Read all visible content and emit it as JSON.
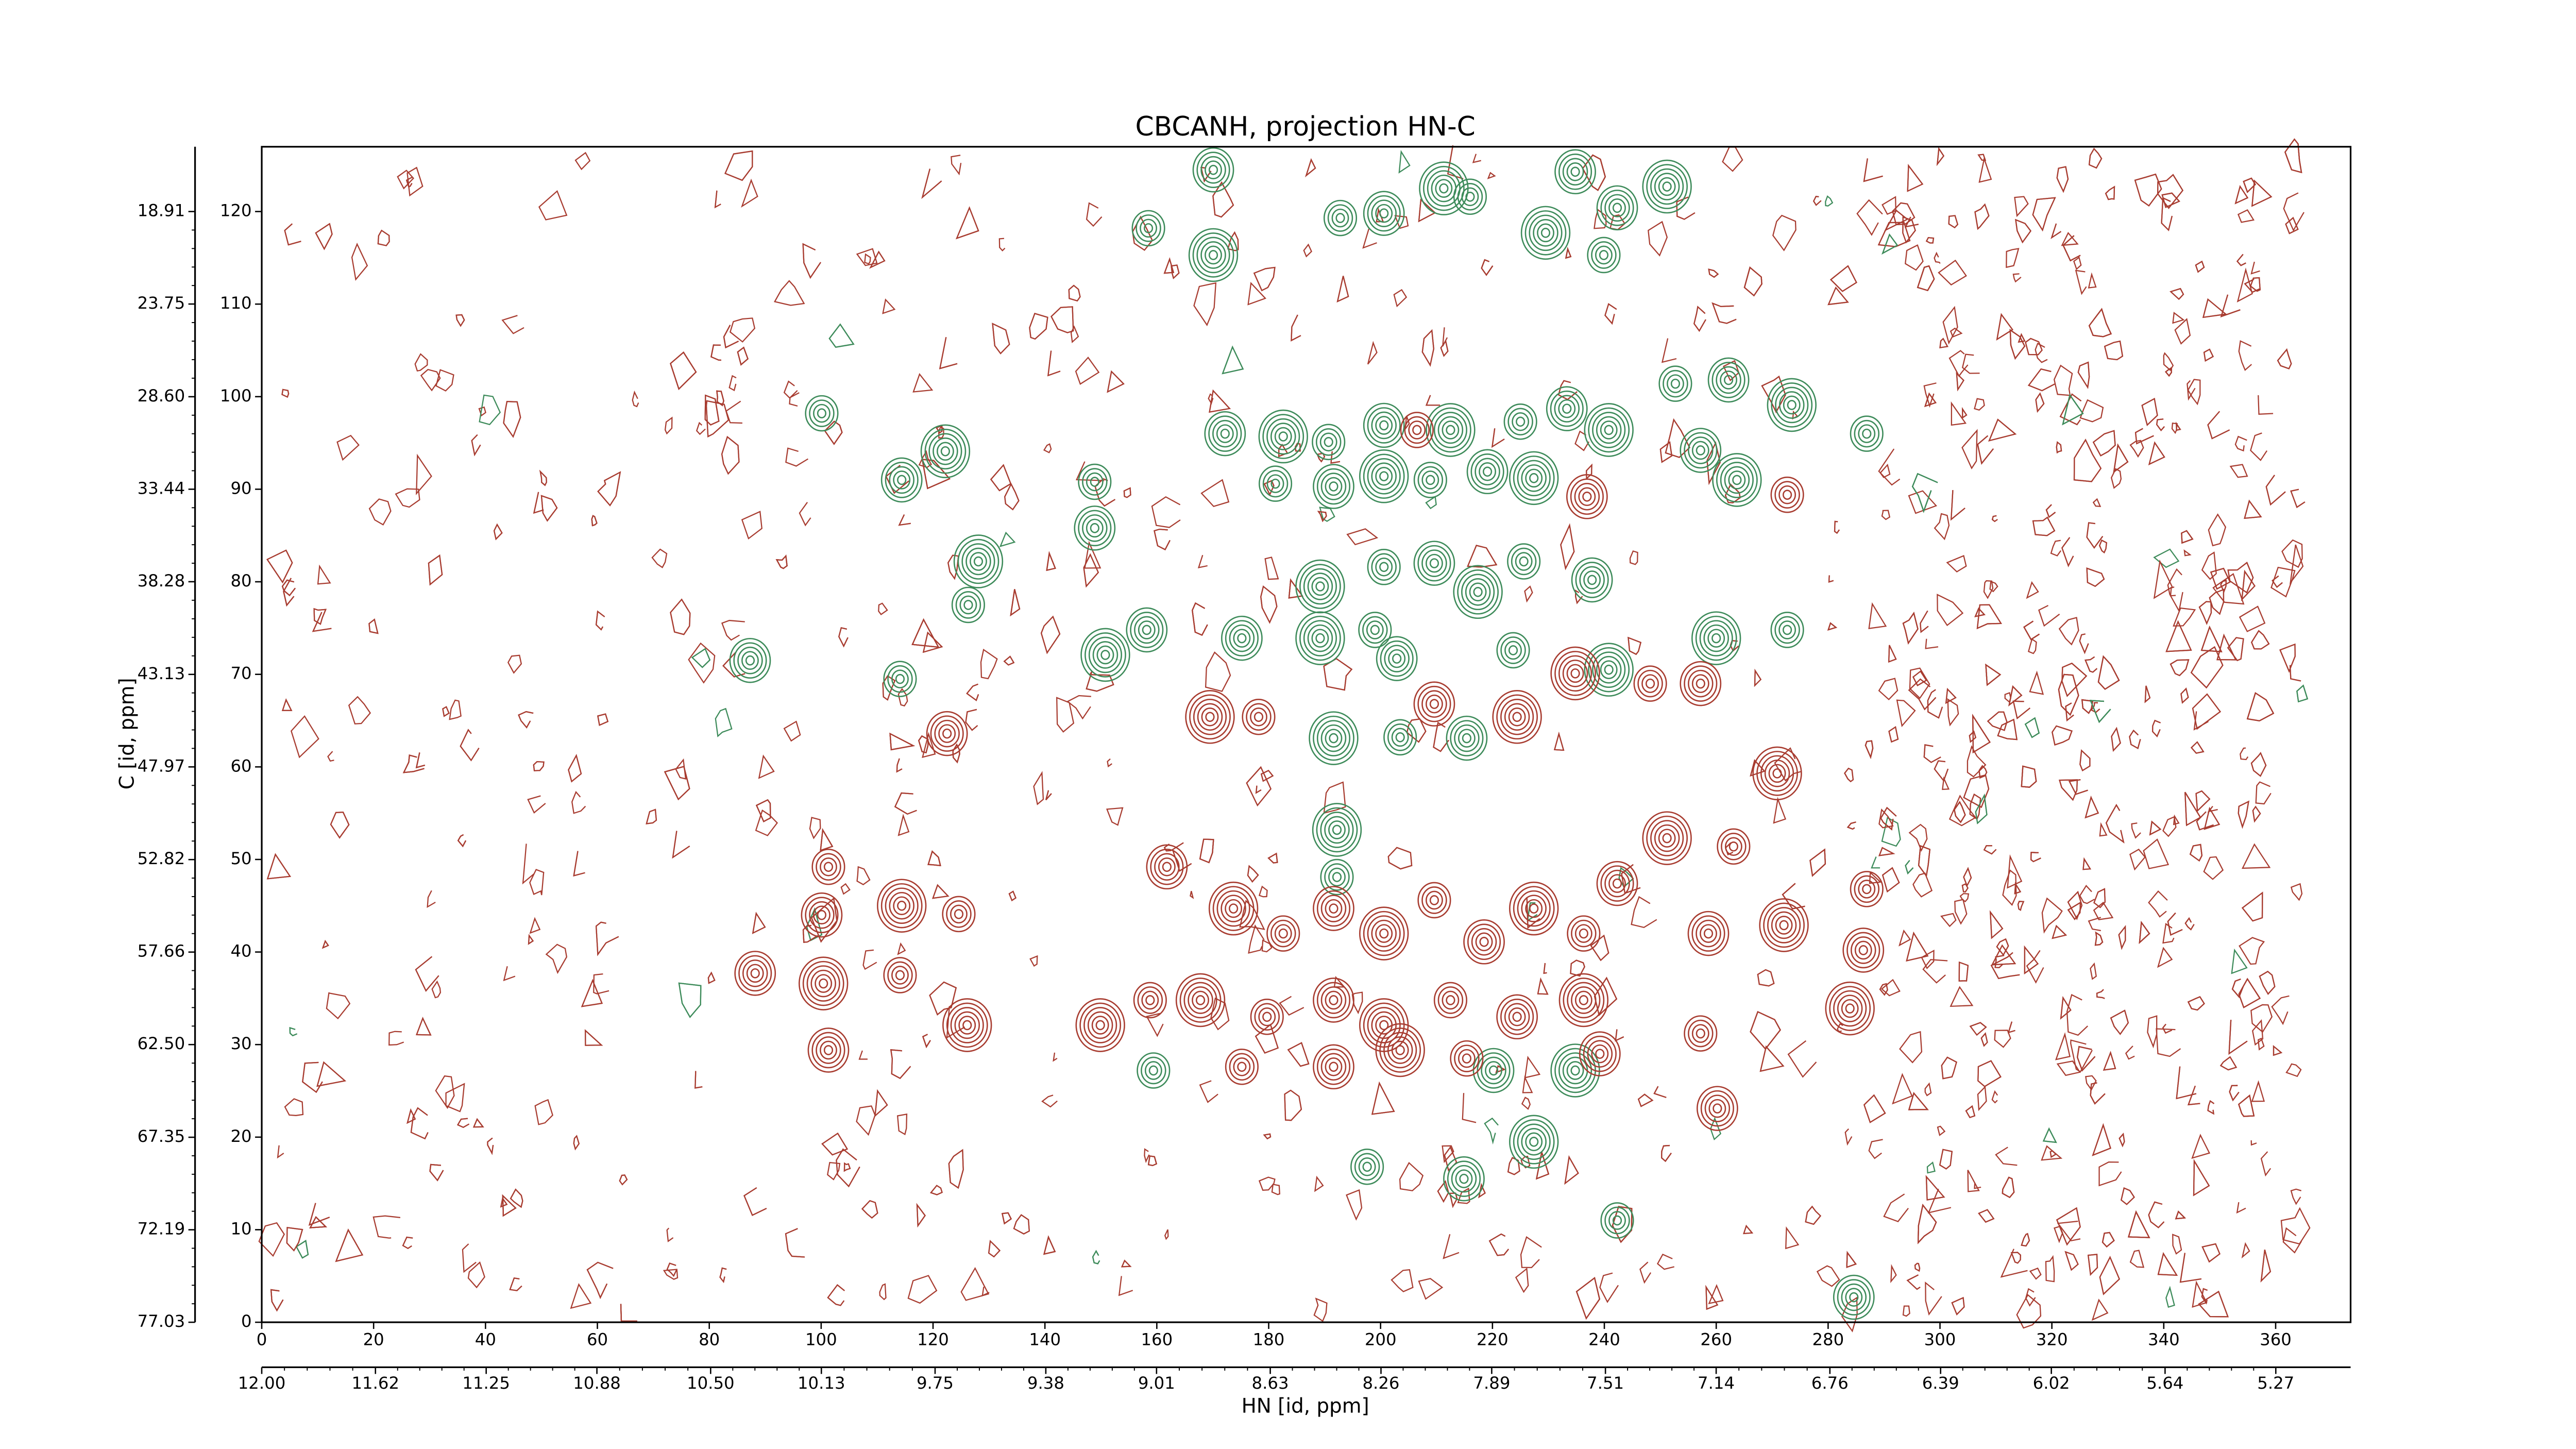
{
  "chart_data": {
    "type": "contour",
    "title": "CBCANH, projection HN-C",
    "xlabel": "HN [id, ppm]",
    "ylabel": "C [id, ppm]",
    "xlim": [
      0,
      373.4
    ],
    "xticks": [
      0,
      20,
      40,
      60,
      80,
      100,
      120,
      140,
      160,
      180,
      200,
      220,
      240,
      260,
      280,
      300,
      320,
      340,
      360
    ],
    "x2lim": [
      12.0,
      5.02
    ],
    "x2ticks": [
      {
        "value": 12.0,
        "label": "12.00"
      },
      11.62,
      11.25,
      10.88,
      {
        "value": 10.5,
        "label": "10.50"
      },
      10.13,
      9.75,
      9.38,
      9.01,
      8.63,
      8.26,
      7.89,
      7.51,
      7.14,
      6.76,
      6.39,
      6.02,
      5.64,
      5.27
    ],
    "ylim": [
      0,
      127
    ],
    "yticks": [
      0,
      10,
      20,
      30,
      40,
      50,
      60,
      70,
      80,
      90,
      100,
      110,
      120
    ],
    "y2lim": [
      77.03,
      15.52
    ],
    "y2ticks": [
      77.03,
      72.19,
      67.35,
      {
        "value": 62.5,
        "label": "62.50"
      },
      57.66,
      52.82,
      47.97,
      43.13,
      38.28,
      33.44,
      {
        "value": 28.6,
        "label": "28.60"
      },
      23.75,
      18.91
    ],
    "series": [
      {
        "color": "#3d8b5a",
        "x": [
          158.5,
          170.1,
          170.1,
          192.8,
          200.6,
          211.3,
          216.0,
          234.8,
          229.5,
          239.9,
          242.3,
          251.2,
          100.1,
          114.4,
          122.2,
          148.9,
          148.9,
          128.1,
          126.3,
          172.2,
          182.6,
          190.7,
          200.6,
          212.5,
          225.0,
          233.3,
          240.8,
          252.7,
          262.2,
          273.5,
          286.9,
          257.2,
          263.7,
          181.2,
          191.6,
          200.6,
          208.9,
          219.1,
          227.4,
          225.6,
          237.8,
          189.2,
          200.6,
          209.6,
          217.4,
          223.7,
          175.2,
          189.2,
          199.0,
          202.9,
          260.0,
          272.7,
          158.2,
          150.8,
          114.1,
          87.3,
          191.6,
          203.5,
          215.4,
          240.8,
          159.4,
          220.2,
          234.8,
          197.6,
          214.9,
          227.4,
          242.3,
          284.6,
          192.2,
          192.2
        ],
        "values": [
          118.2,
          124.5,
          115.3,
          119.3,
          119.8,
          122.5,
          121.6,
          124.3,
          117.7,
          115.3,
          120.4,
          122.7,
          98.2,
          91.0,
          94.1,
          90.8,
          85.8,
          82.2,
          77.5,
          96.0,
          95.7,
          95.1,
          96.9,
          96.4,
          97.3,
          98.7,
          96.4,
          101.4,
          101.8,
          99.1,
          96.0,
          94.2,
          91.0,
          90.6,
          90.3,
          91.4,
          91.0,
          91.9,
          91.2,
          82.2,
          80.2,
          79.5,
          81.6,
          82.0,
          78.9,
          72.6,
          73.9,
          73.9,
          74.8,
          71.7,
          73.9,
          74.8,
          74.8,
          72.1,
          69.5,
          71.5,
          63.1,
          63.2,
          63.1,
          70.5,
          27.2,
          27.2,
          27.2,
          16.8,
          15.5,
          19.5,
          11.0,
          2.7,
          53.2,
          48.1
        ]
      },
      {
        "color": "#a83c30",
        "x": [
          101.3,
          100.1,
          114.4,
          124.6,
          88.2,
          100.4,
          114.1,
          101.3,
          149.9,
          158.8,
          161.8,
          173.7,
          182.6,
          191.6,
          200.6,
          209.6,
          218.5,
          227.4,
          236.3,
          242.3,
          167.8,
          179.7,
          191.6,
          200.6,
          212.5,
          224.4,
          236.3,
          175.2,
          191.6,
          203.5,
          215.4,
          239.2,
          251.2,
          263.1,
          258.6,
          272.1,
          286.9,
          286.3,
          283.9,
          257.2,
          260.2,
          270.9,
          272.7,
          236.9,
          169.5,
          178.2,
          209.6,
          234.8,
          248.2,
          257.2,
          224.4,
          206.5,
          122.5,
          126.1
        ],
        "values": [
          49.2,
          44.0,
          45.0,
          44.1,
          37.7,
          36.6,
          37.5,
          29.4,
          32.1,
          34.8,
          49.2,
          44.7,
          42.0,
          44.7,
          42.0,
          45.6,
          41.1,
          44.7,
          42.0,
          47.4,
          34.8,
          33.0,
          34.8,
          32.1,
          34.8,
          33.0,
          34.8,
          27.6,
          27.6,
          29.4,
          28.5,
          29.0,
          52.3,
          51.4,
          42.0,
          42.9,
          46.8,
          40.2,
          33.9,
          31.2,
          23.1,
          59.3,
          89.4,
          89.2,
          65.4,
          65.4,
          66.8,
          70.1,
          69.0,
          69.0,
          65.4,
          96.4,
          63.6,
          32.1
        ]
      }
    ]
  }
}
